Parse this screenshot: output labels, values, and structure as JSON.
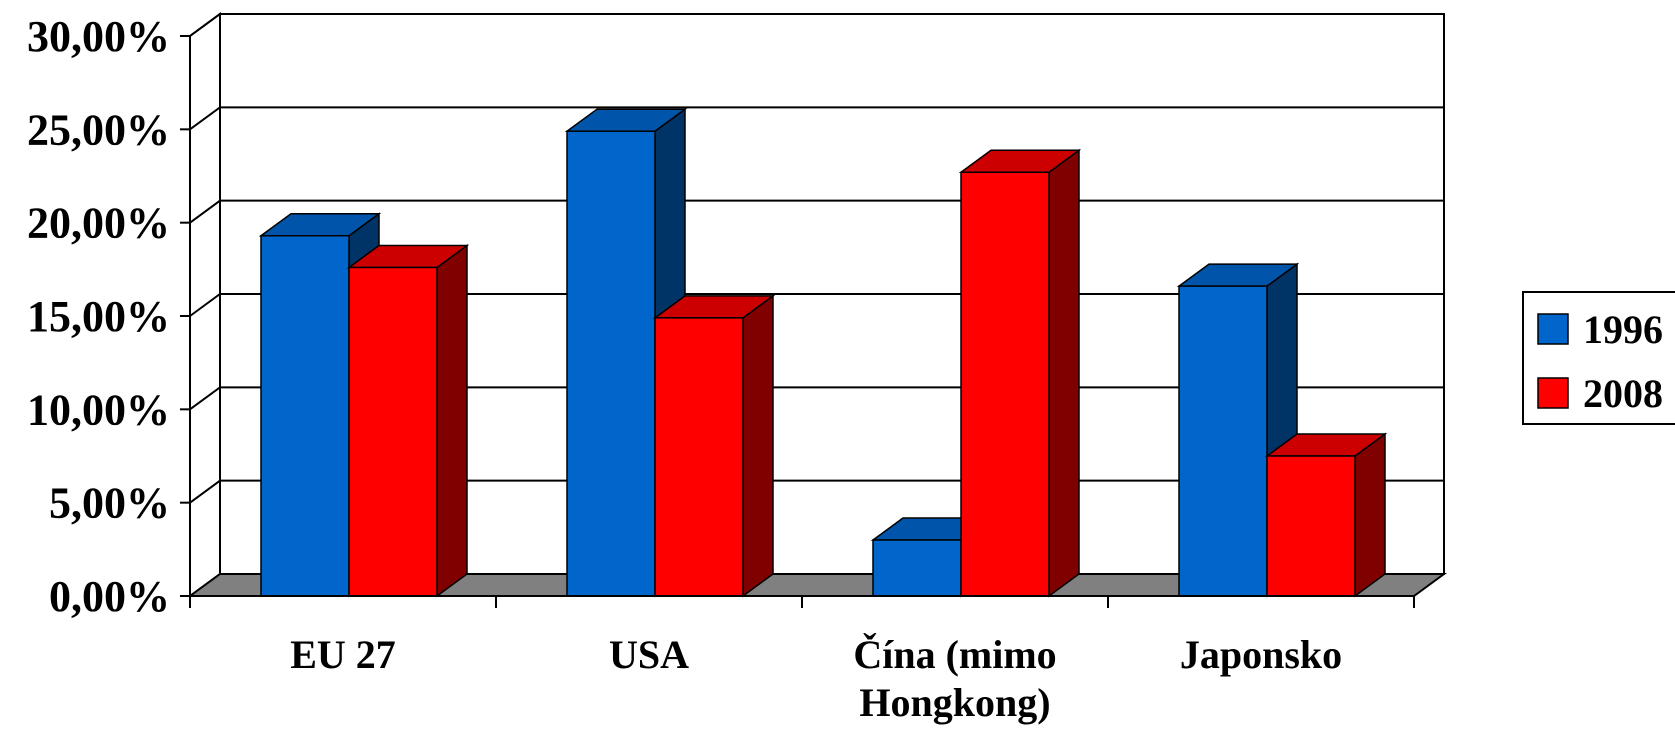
{
  "chart_data": {
    "type": "bar",
    "style": "3d-clustered-column",
    "categories": [
      [
        "EU 27"
      ],
      [
        "USA"
      ],
      [
        "Čína (mimo",
        "Hongkong)"
      ],
      [
        "Japonsko"
      ]
    ],
    "series": [
      {
        "name": "1996",
        "values": [
          0.193,
          0.249,
          0.03,
          0.166
        ],
        "color": "#0066CC",
        "top_color": "#0055AA",
        "side_color": "#003366"
      },
      {
        "name": "2008",
        "values": [
          0.176,
          0.149,
          0.227,
          0.075
        ],
        "color": "#FF0000",
        "top_color": "#CC0000",
        "side_color": "#800000"
      }
    ],
    "ylim": [
      0,
      0.3
    ],
    "yticks": [
      "0,00%",
      "5,00%",
      "10,00%",
      "15,00%",
      "20,00%",
      "25,00%",
      "30,00%"
    ],
    "grid": true,
    "floor_color": "#808080",
    "legend_position": "right"
  }
}
